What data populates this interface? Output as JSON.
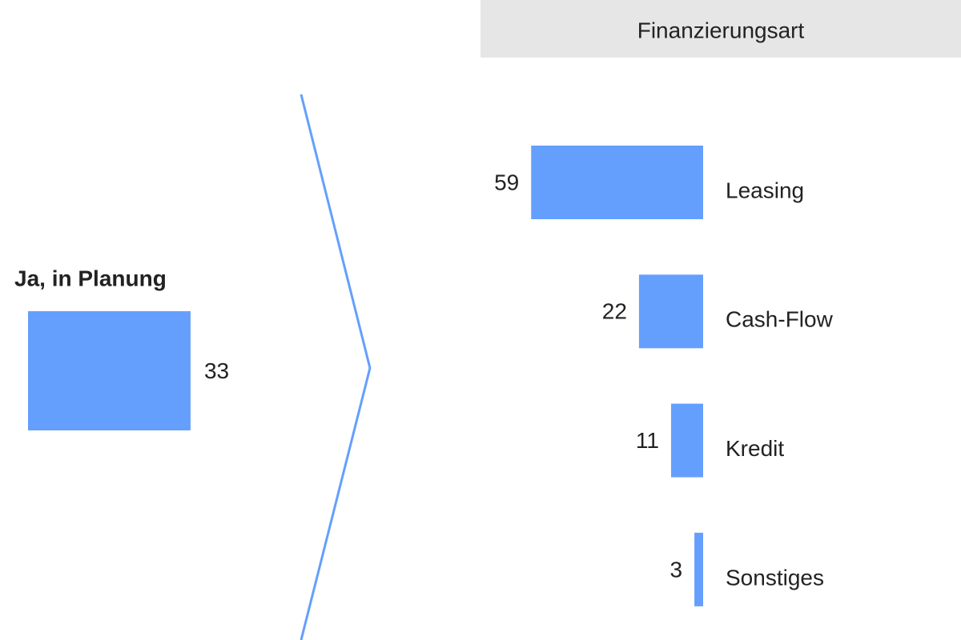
{
  "chart_data": [
    {
      "type": "bar",
      "categories": [
        "Ja, in Planung"
      ],
      "values": [
        33
      ],
      "color": "#659ffd"
    },
    {
      "type": "hbar",
      "title": "Finanzierungsart",
      "categories": [
        "Leasing",
        "Cash-Flow",
        "Kredit",
        "Sonstiges"
      ],
      "values": [
        59,
        22,
        11,
        3
      ],
      "color": "#659ffd"
    }
  ]
}
